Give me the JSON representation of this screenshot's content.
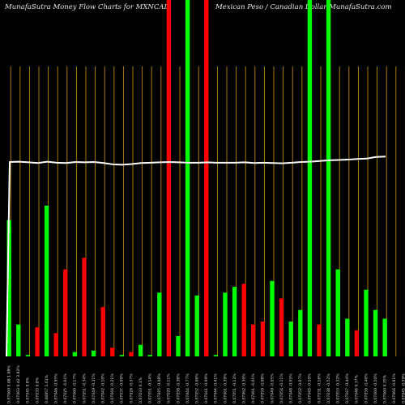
{
  "header": {
    "left": "MunafaSutra  Money Flow  Charts for MXNCAD",
    "right": "Mexican  Peso  / Canadian  Dollar MunafaSutra.com"
  },
  "colors": {
    "up": "#00ff00",
    "down": "#ff0000",
    "line": "#ffffff",
    "grid": "#b8860b",
    "background": "#000000"
  },
  "chart_data": {
    "type": "bar",
    "ylim": [
      0,
      100
    ],
    "categories": [
      "0.07060 0.68 1.68%",
      "0.07063 0.42 3.82%",
      "0.07045 0.8%",
      "0.07033 0.8%",
      "0.06957 1.61%",
      "0.07046 -0.95%",
      "0.07025 -0.61%",
      "0.07060 -0.17%",
      "0.07051 -0.34%",
      "0.07049 -0.31%",
      "0.07042 -0.10%",
      "0.07044 -0.21%",
      "0.07037 -0.09%",
      "0.07026 -0.37%",
      "0.07033 0.1%",
      "0.07051 -0.14%",
      "0.07045 -0.08%",
      "0.07020 -0.11%",
      "0.07058 -0.38%",
      "0.07044 -0.77%",
      "0.07052 -0.06%",
      "0.07041 -0.09%",
      "0.07044 -0.41%",
      "0.07061 -0.39%",
      "0.07051 -0.13%",
      "0.07062 -0.30%",
      "0.07061 -0.01%",
      "0.07059 -0.08%",
      "0.07049 -0.05%",
      "0.07054 -0.11%",
      "0.07048 -0.05%",
      "0.07052 -0.07%",
      "0.07043 -0.10%",
      "0.07031 -0.16%",
      "0.07038 -0.52%",
      "0.07053 -0.32%",
      "0.07047 -0.44%",
      "0.07048 0.37%",
      "0.07056 -0.46%",
      "0.07060 -0.10%",
      "0.07060 0.35%",
      "0.07064 -0.61%",
      "0.07045 -0.59%",
      "0.07066 -0.32%",
      "0.07062 -0.60%"
    ],
    "flow": [
      "up",
      "up",
      "up",
      "down",
      "up",
      "down",
      "down",
      "up",
      "down",
      "up",
      "down",
      "down",
      "up",
      "down",
      "up",
      "up",
      "up",
      "down",
      "up",
      "up",
      "up",
      "down",
      "up",
      "up",
      "up",
      "down",
      "down",
      "down",
      "up",
      "down",
      "up",
      "up",
      "up",
      "down",
      "up",
      "up",
      "up",
      "down",
      "up",
      "up",
      "up",
      "up",
      "up",
      "up",
      "up"
    ],
    "values": [
      47,
      11,
      0.5,
      10,
      52,
      8,
      30,
      1.5,
      34,
      2,
      17,
      3,
      0.5,
      1.5,
      4,
      0.5,
      22,
      100,
      7,
      100,
      21,
      100,
      0.5,
      22,
      24,
      25,
      11,
      12,
      26,
      20,
      12,
      16,
      100,
      11,
      100,
      30,
      13,
      9,
      23,
      16,
      13,
      0,
      0,
      0,
      0
    ],
    "line": [
      54.5,
      54.6,
      54.4,
      54.2,
      54.6,
      54.3,
      54.2,
      54.5,
      54.4,
      54.5,
      54.2,
      53.8,
      53.7,
      53.9,
      54.2,
      54.3,
      54.4,
      54.5,
      54.4,
      54.3,
      54.3,
      54.4,
      54.3,
      54.3,
      54.3,
      54.4,
      54.2,
      54.3,
      54.2,
      54.1,
      54.3,
      54.5,
      54.6,
      54.8,
      55.0,
      55.1,
      55.2,
      55.4,
      55.5,
      56.0,
      56.1
    ]
  }
}
